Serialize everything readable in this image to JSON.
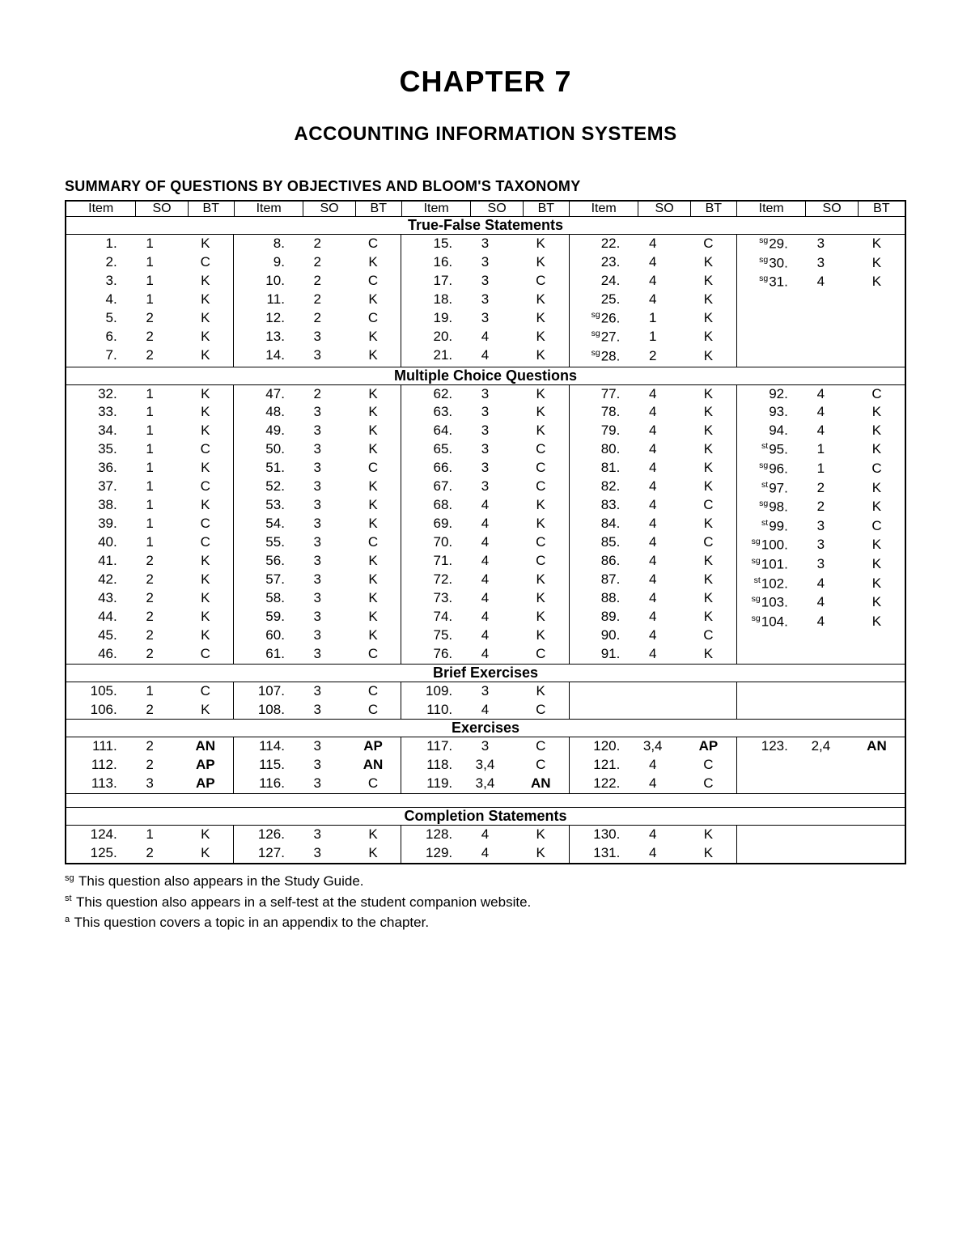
{
  "chapter_title": "CHAPTER 7",
  "chapter_subtitle": "ACCOUNTING INFORMATION SYSTEMS",
  "table_title": "SUMMARY OF QUESTIONS BY OBJECTIVES AND BLOOM'S TAXONOMY",
  "col_headers": [
    "Item",
    "SO",
    "BT",
    "Item",
    "SO",
    "BT",
    "Item",
    "SO",
    "BT",
    "Item",
    "SO",
    "BT",
    "Item",
    "SO",
    "BT"
  ],
  "sections": [
    {
      "title": "True-False Statements",
      "groups": [
        [
          [
            "",
            "1.",
            "1",
            "K"
          ],
          [
            "",
            "2.",
            "1",
            "C"
          ],
          [
            "",
            "3.",
            "1",
            "K"
          ],
          [
            "",
            "4.",
            "1",
            "K"
          ],
          [
            "",
            "5.",
            "2",
            "K"
          ],
          [
            "",
            "6.",
            "2",
            "K"
          ],
          [
            "",
            "7.",
            "2",
            "K"
          ]
        ],
        [
          [
            "",
            "8.",
            "2",
            "C"
          ],
          [
            "",
            "9.",
            "2",
            "K"
          ],
          [
            "",
            "10.",
            "2",
            "C"
          ],
          [
            "",
            "11.",
            "2",
            "K"
          ],
          [
            "",
            "12.",
            "2",
            "C"
          ],
          [
            "",
            "13.",
            "3",
            "K"
          ],
          [
            "",
            "14.",
            "3",
            "K"
          ]
        ],
        [
          [
            "",
            "15.",
            "3",
            "K"
          ],
          [
            "",
            "16.",
            "3",
            "K"
          ],
          [
            "",
            "17.",
            "3",
            "C"
          ],
          [
            "",
            "18.",
            "3",
            "K"
          ],
          [
            "",
            "19.",
            "3",
            "K"
          ],
          [
            "",
            "20.",
            "4",
            "K"
          ],
          [
            "",
            "21.",
            "4",
            "K"
          ]
        ],
        [
          [
            "",
            "22.",
            "4",
            "C"
          ],
          [
            "",
            "23.",
            "4",
            "K"
          ],
          [
            "",
            "24.",
            "4",
            "K"
          ],
          [
            "",
            "25.",
            "4",
            "K"
          ],
          [
            "sg",
            "26.",
            "1",
            "K"
          ],
          [
            "sg",
            "27.",
            "1",
            "K"
          ],
          [
            "sg",
            "28.",
            "2",
            "K"
          ]
        ],
        [
          [
            "sg",
            "29.",
            "3",
            "K"
          ],
          [
            "sg",
            "30.",
            "3",
            "K"
          ],
          [
            "sg",
            "31.",
            "4",
            "K"
          ]
        ]
      ]
    },
    {
      "title": "Multiple Choice Questions",
      "groups": [
        [
          [
            "",
            "32.",
            "1",
            "K"
          ],
          [
            "",
            "33.",
            "1",
            "K"
          ],
          [
            "",
            "34.",
            "1",
            "K"
          ],
          [
            "",
            "35.",
            "1",
            "C"
          ],
          [
            "",
            "36.",
            "1",
            "K"
          ],
          [
            "",
            "37.",
            "1",
            "C"
          ],
          [
            "",
            "38.",
            "1",
            "K"
          ],
          [
            "",
            "39.",
            "1",
            "C"
          ],
          [
            "",
            "40.",
            "1",
            "C"
          ],
          [
            "",
            "41.",
            "2",
            "K"
          ],
          [
            "",
            "42.",
            "2",
            "K"
          ],
          [
            "",
            "43.",
            "2",
            "K"
          ],
          [
            "",
            "44.",
            "2",
            "K"
          ],
          [
            "",
            "45.",
            "2",
            "K"
          ],
          [
            "",
            "46.",
            "2",
            "C"
          ]
        ],
        [
          [
            "",
            "47.",
            "2",
            "K"
          ],
          [
            "",
            "48.",
            "3",
            "K"
          ],
          [
            "",
            "49.",
            "3",
            "K"
          ],
          [
            "",
            "50.",
            "3",
            "K"
          ],
          [
            "",
            "51.",
            "3",
            "C"
          ],
          [
            "",
            "52.",
            "3",
            "K"
          ],
          [
            "",
            "53.",
            "3",
            "K"
          ],
          [
            "",
            "54.",
            "3",
            "K"
          ],
          [
            "",
            "55.",
            "3",
            "C"
          ],
          [
            "",
            "56.",
            "3",
            "K"
          ],
          [
            "",
            "57.",
            "3",
            "K"
          ],
          [
            "",
            "58.",
            "3",
            "K"
          ],
          [
            "",
            "59.",
            "3",
            "K"
          ],
          [
            "",
            "60.",
            "3",
            "K"
          ],
          [
            "",
            "61.",
            "3",
            "C"
          ]
        ],
        [
          [
            "",
            "62.",
            "3",
            "K"
          ],
          [
            "",
            "63.",
            "3",
            "K"
          ],
          [
            "",
            "64.",
            "3",
            "K"
          ],
          [
            "",
            "65.",
            "3",
            "C"
          ],
          [
            "",
            "66.",
            "3",
            "C"
          ],
          [
            "",
            "67.",
            "3",
            "C"
          ],
          [
            "",
            "68.",
            "4",
            "K"
          ],
          [
            "",
            "69.",
            "4",
            "K"
          ],
          [
            "",
            "70.",
            "4",
            "C"
          ],
          [
            "",
            "71.",
            "4",
            "C"
          ],
          [
            "",
            "72.",
            "4",
            "K"
          ],
          [
            "",
            "73.",
            "4",
            "K"
          ],
          [
            "",
            "74.",
            "4",
            "K"
          ],
          [
            "",
            "75.",
            "4",
            "K"
          ],
          [
            "",
            "76.",
            "4",
            "C"
          ]
        ],
        [
          [
            "",
            "77.",
            "4",
            "K"
          ],
          [
            "",
            "78.",
            "4",
            "K"
          ],
          [
            "",
            "79.",
            "4",
            "K"
          ],
          [
            "",
            "80.",
            "4",
            "K"
          ],
          [
            "",
            "81.",
            "4",
            "K"
          ],
          [
            "",
            "82.",
            "4",
            "K"
          ],
          [
            "",
            "83.",
            "4",
            "C"
          ],
          [
            "",
            "84.",
            "4",
            "K"
          ],
          [
            "",
            "85.",
            "4",
            "C"
          ],
          [
            "",
            "86.",
            "4",
            "K"
          ],
          [
            "",
            "87.",
            "4",
            "K"
          ],
          [
            "",
            "88.",
            "4",
            "K"
          ],
          [
            "",
            "89.",
            "4",
            "K"
          ],
          [
            "",
            "90.",
            "4",
            "C"
          ],
          [
            "",
            "91.",
            "4",
            "K"
          ]
        ],
        [
          [
            "",
            "92.",
            "4",
            "C"
          ],
          [
            "",
            "93.",
            "4",
            "K"
          ],
          [
            "",
            "94.",
            "4",
            "K"
          ],
          [
            "st",
            "95.",
            "1",
            "K"
          ],
          [
            "sg",
            "96.",
            "1",
            "C"
          ],
          [
            "st",
            "97.",
            "2",
            "K"
          ],
          [
            "sg",
            "98.",
            "2",
            "K"
          ],
          [
            "st",
            "99.",
            "3",
            "C"
          ],
          [
            "sg",
            "100.",
            "3",
            "K"
          ],
          [
            "sg",
            "101.",
            "3",
            "K"
          ],
          [
            "st",
            "102.",
            "4",
            "K"
          ],
          [
            "sg",
            "103.",
            "4",
            "K"
          ],
          [
            "sg",
            "104.",
            "4",
            "K"
          ]
        ]
      ]
    },
    {
      "title": "Brief Exercises",
      "groups": [
        [
          [
            "",
            "105.",
            "1",
            "C"
          ],
          [
            "",
            "106.",
            "2",
            "K"
          ]
        ],
        [
          [
            "",
            "107.",
            "3",
            "C"
          ],
          [
            "",
            "108.",
            "3",
            "C"
          ]
        ],
        [
          [
            "",
            "109.",
            "3",
            "K"
          ],
          [
            "",
            "110.",
            "4",
            "C"
          ]
        ],
        [],
        []
      ]
    },
    {
      "title": "Exercises",
      "bold_bt": true,
      "groups": [
        [
          [
            "",
            "111.",
            "2",
            "AN"
          ],
          [
            "",
            "112.",
            "2",
            "AP"
          ],
          [
            "",
            "113.",
            "3",
            "AP"
          ]
        ],
        [
          [
            "",
            "114.",
            "3",
            "AP"
          ],
          [
            "",
            "115.",
            "3",
            "AN"
          ],
          [
            "",
            "116.",
            "3",
            "C"
          ]
        ],
        [
          [
            "",
            "117.",
            "3",
            "C"
          ],
          [
            "",
            "118.",
            "3,4",
            "C"
          ],
          [
            "",
            "119.",
            "3,4",
            "AN"
          ]
        ],
        [
          [
            "",
            "120.",
            "3,4",
            "AP"
          ],
          [
            "",
            "121.",
            "4",
            "C"
          ],
          [
            "",
            "122.",
            "4",
            "C"
          ]
        ],
        [
          [
            "",
            "123.",
            "2,4",
            "AN"
          ]
        ]
      ],
      "spacer_after": true
    },
    {
      "title": "Completion Statements",
      "groups": [
        [
          [
            "",
            "124.",
            "1",
            "K"
          ],
          [
            "",
            "125.",
            "2",
            "K"
          ]
        ],
        [
          [
            "",
            "126.",
            "3",
            "K"
          ],
          [
            "",
            "127.",
            "3",
            "K"
          ]
        ],
        [
          [
            "",
            "128.",
            "4",
            "K"
          ],
          [
            "",
            "129.",
            "4",
            "K"
          ]
        ],
        [
          [
            "",
            "130.",
            "4",
            "K"
          ],
          [
            "",
            "131.",
            "4",
            "K"
          ]
        ],
        []
      ]
    }
  ],
  "footnotes": [
    {
      "mark": "sg",
      "text": "This question also appears in the Study Guide."
    },
    {
      "mark": "st",
      "text": "This question also appears in a self-test at the student companion website."
    },
    {
      "mark": "a",
      "text": "This question covers a topic in an appendix to the chapter."
    }
  ]
}
